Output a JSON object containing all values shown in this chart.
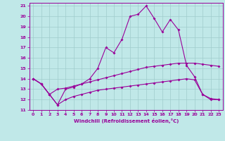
{
  "title": "",
  "xlabel": "Windchill (Refroidissement éolien,°C)",
  "background_color": "#c0e8e8",
  "grid_color": "#a0cccc",
  "line_color": "#990099",
  "xlim": [
    -0.5,
    23.5
  ],
  "ylim": [
    11,
    21.3
  ],
  "xticks": [
    0,
    1,
    2,
    3,
    4,
    5,
    6,
    7,
    8,
    9,
    10,
    11,
    12,
    13,
    14,
    15,
    16,
    17,
    18,
    19,
    20,
    21,
    22,
    23
  ],
  "yticks": [
    11,
    12,
    13,
    14,
    15,
    16,
    17,
    18,
    19,
    20,
    21
  ],
  "line1_x": [
    0,
    1,
    2,
    3,
    4,
    5,
    6,
    7,
    8,
    9,
    10,
    11,
    12,
    13,
    14,
    15,
    16,
    17,
    18,
    19,
    20,
    21,
    22,
    23
  ],
  "line1_y": [
    14.0,
    13.5,
    12.5,
    11.5,
    13.0,
    13.2,
    13.5,
    14.0,
    15.0,
    17.0,
    16.5,
    17.8,
    20.0,
    20.2,
    21.0,
    19.8,
    18.5,
    19.7,
    18.7,
    15.3,
    14.2,
    12.5,
    12.0,
    12.0
  ],
  "line2_x": [
    0,
    1,
    2,
    3,
    4,
    5,
    6,
    7,
    8,
    9,
    10,
    11,
    12,
    13,
    14,
    15,
    16,
    17,
    18,
    19,
    20,
    21,
    22,
    23
  ],
  "line2_y": [
    14.0,
    13.5,
    12.5,
    13.0,
    13.1,
    13.3,
    13.5,
    13.7,
    13.9,
    14.1,
    14.3,
    14.5,
    14.7,
    14.9,
    15.1,
    15.2,
    15.3,
    15.4,
    15.5,
    15.5,
    15.5,
    15.4,
    15.3,
    15.2
  ],
  "line3_x": [
    0,
    1,
    2,
    3,
    4,
    5,
    6,
    7,
    8,
    9,
    10,
    11,
    12,
    13,
    14,
    15,
    16,
    17,
    18,
    19,
    20,
    21,
    22,
    23
  ],
  "line3_y": [
    14.0,
    13.5,
    12.5,
    11.5,
    12.0,
    12.3,
    12.5,
    12.7,
    12.9,
    13.0,
    13.1,
    13.2,
    13.3,
    13.4,
    13.5,
    13.6,
    13.7,
    13.8,
    13.9,
    14.0,
    13.9,
    12.5,
    12.1,
    12.0
  ]
}
